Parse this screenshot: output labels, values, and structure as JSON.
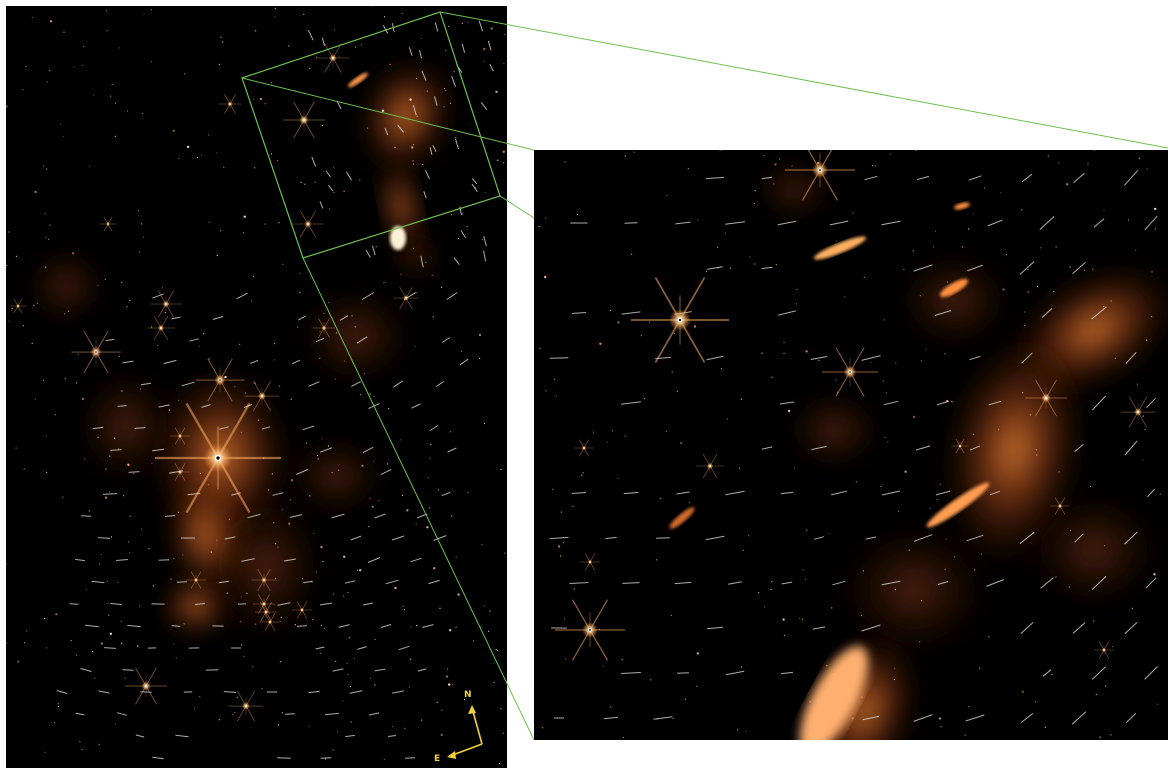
{
  "compass": {
    "north_label": "N",
    "east_label": "E",
    "color": "#f2d23a"
  },
  "colors": {
    "background": "#000000",
    "nebula": "#e0702a",
    "star": "#ffe6c0",
    "zoom_box": "#6fbf4f",
    "polarization_vectors": "#d9d9d9"
  }
}
